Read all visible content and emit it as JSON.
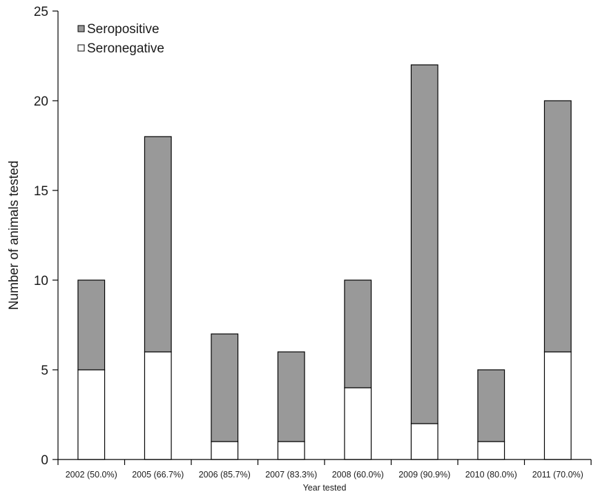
{
  "chart_data": {
    "type": "bar",
    "stacked": true,
    "title": "",
    "xlabel": "Year tested",
    "ylabel": "Number of animals tested",
    "ylim": [
      0,
      25
    ],
    "yticks": [
      0,
      5,
      10,
      15,
      20,
      25
    ],
    "grid": false,
    "legend_position": "top-left",
    "categories": [
      "2002 (50.0%)",
      "2005 (66.7%)",
      "2006 (85.7%)",
      "2007 (83.3%)",
      "2008 (60.0%)",
      "2009 (90.9%)",
      "2010 (80.0%)",
      "2011 (70.0%)"
    ],
    "series": [
      {
        "name": "Seronegative",
        "color": "#ffffff",
        "values": [
          5,
          6,
          1,
          1,
          4,
          2,
          1,
          6
        ]
      },
      {
        "name": "Seropositive",
        "color": "#999999",
        "values": [
          5,
          12,
          6,
          5,
          6,
          20,
          4,
          14
        ]
      }
    ],
    "legend_order": [
      1,
      0
    ]
  }
}
